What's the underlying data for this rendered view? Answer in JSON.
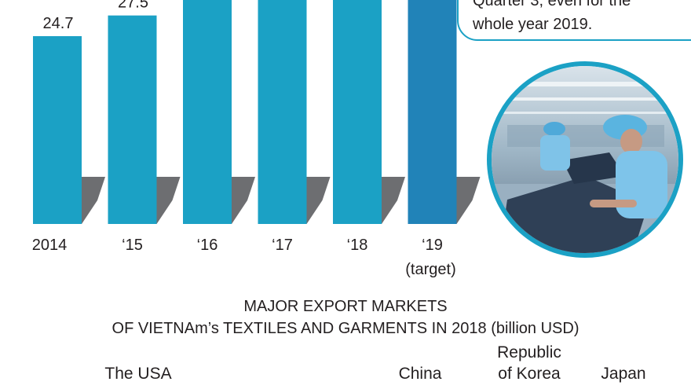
{
  "chart_data": {
    "type": "bar",
    "categories": [
      "2014",
      "‘15",
      "‘16",
      "‘17",
      "‘18",
      "‘19"
    ],
    "category_notes": [
      "",
      "",
      "",
      "",
      "",
      "(target)"
    ],
    "values": [
      24.7,
      27.5,
      null,
      null,
      null,
      null
    ],
    "value_labels": [
      "24.7",
      "27.5",
      "",
      "",
      "",
      ""
    ],
    "colors": {
      "bar": "#1ba1c5",
      "target_bar": "#2183b8",
      "shadow": "#6d6e71"
    }
  },
  "callout": {
    "lines": [
      "Quarter 3, even for the",
      "whole year 2019."
    ]
  },
  "photo": {
    "icon": "garment-factory-workers-photo"
  },
  "markets": {
    "title_line1": "MAJOR EXPORT MARKETS",
    "title_line2": "OF VIETNAm’s TEXTILES AND GARMENTS IN 2018 (billion USD)",
    "labels": [
      {
        "name": "The USA",
        "lines": [
          "The USA"
        ]
      },
      {
        "name": "China",
        "lines": [
          "China"
        ]
      },
      {
        "name": "Republic of Korea",
        "lines": [
          "Republic",
          "of Korea"
        ]
      },
      {
        "name": "Japan",
        "lines": [
          "Japan"
        ]
      }
    ]
  }
}
